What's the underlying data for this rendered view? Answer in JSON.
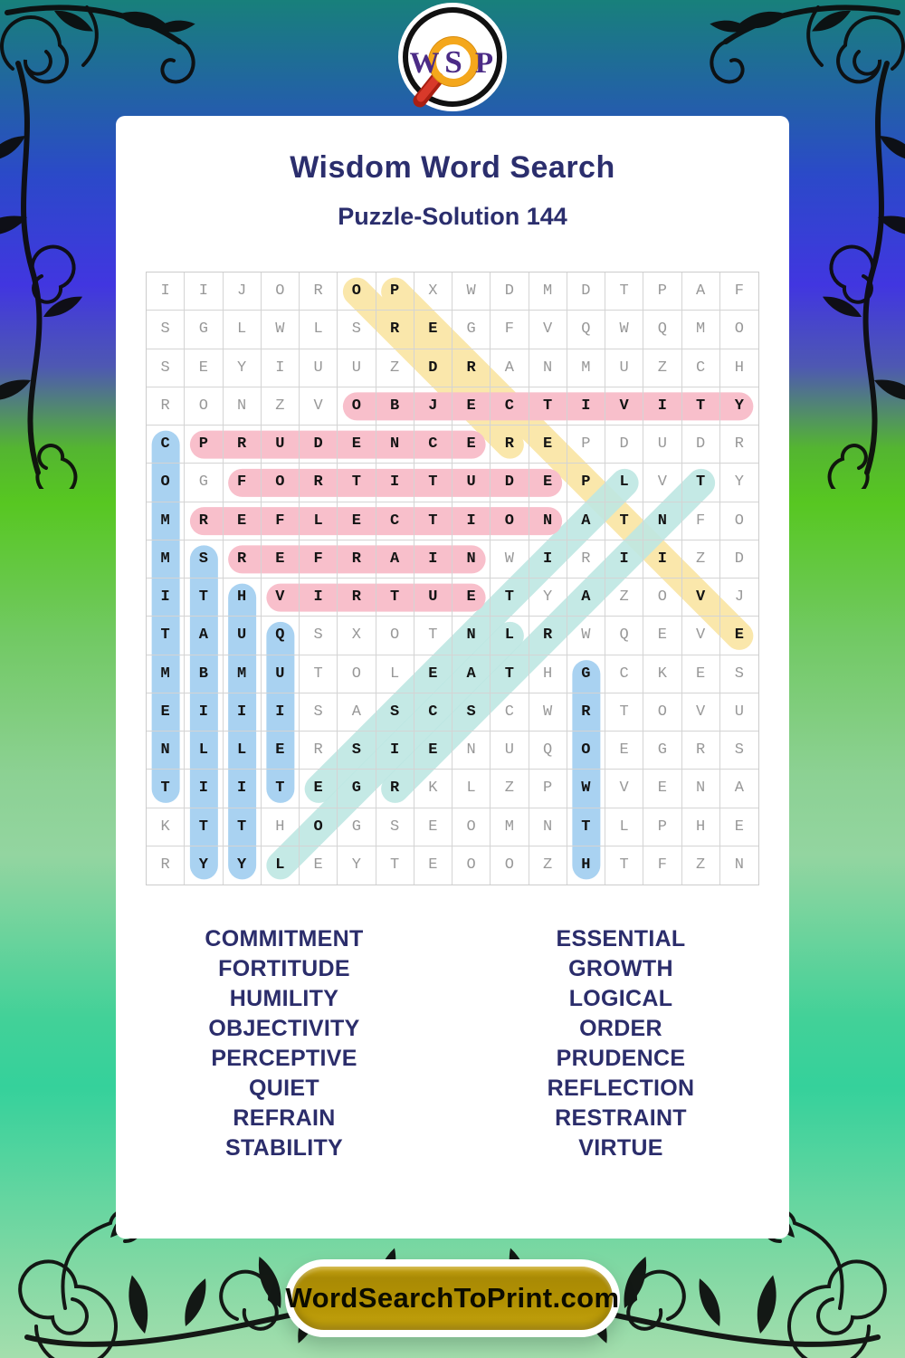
{
  "page": {
    "title": "Wisdom Word Search",
    "subtitle": "Puzzle-Solution 144"
  },
  "logo": {
    "letters": [
      "W",
      "S",
      "P"
    ],
    "icon": "magnifying-glass"
  },
  "colors": {
    "pink": "#f8bfcb",
    "blue": "#a9d2f1",
    "yellow": "#fae7ab",
    "teal": "#bee7e2",
    "title_navy": "#2b2e6d",
    "button_gold": "#b29102"
  },
  "grid": {
    "rows": [
      "IIJOROPXWDMDTPAF",
      "SGLWLSREGFVQWQMO",
      "SEYIUUZDRANMUZCH",
      "RONZVOBJECTIVITY",
      "CPRUDENCEREPDUDR",
      "OGFORTITUDEPLVTY",
      "MREFLECTIONATNFO",
      "MSREFRAINWIRIIZD",
      "ITHVIRTUETYAZOVJ",
      "TAUQSXOTNLRWQEVE",
      "MBMUTOLEATHGCKES",
      "EIIISASCSCWRTOVU",
      "NLLERSIENUQOEGRS",
      "TIITEGRKLZPWVENA",
      "KTTHOGSEOMNTLPHE",
      "RYYLEYTEOOZHTFZN"
    ],
    "words": [
      {
        "word": "ORDER",
        "color": "yellow",
        "start": [
          1,
          6
        ],
        "end": [
          5,
          10
        ]
      },
      {
        "word": "PERCEPTIVE",
        "color": "yellow",
        "start": [
          1,
          7
        ],
        "end": [
          10,
          16
        ]
      },
      {
        "word": "ESSENTIAL",
        "color": "teal",
        "start": [
          14,
          5
        ],
        "end": [
          6,
          13
        ]
      },
      {
        "word": "RESTRAINT",
        "color": "teal",
        "start": [
          14,
          7
        ],
        "end": [
          6,
          15
        ]
      },
      {
        "word": "LOGICAL",
        "color": "teal",
        "start": [
          16,
          4
        ],
        "end": [
          10,
          10
        ]
      },
      {
        "word": "OBJECTIVITY",
        "color": "pink",
        "start": [
          4,
          6
        ],
        "end": [
          4,
          16
        ]
      },
      {
        "word": "PRUDENCE",
        "color": "pink",
        "start": [
          5,
          2
        ],
        "end": [
          5,
          9
        ]
      },
      {
        "word": "FORTITUDE",
        "color": "pink",
        "start": [
          6,
          3
        ],
        "end": [
          6,
          11
        ]
      },
      {
        "word": "REFLECTION",
        "color": "pink",
        "start": [
          7,
          2
        ],
        "end": [
          7,
          11
        ]
      },
      {
        "word": "REFRAIN",
        "color": "pink",
        "start": [
          8,
          3
        ],
        "end": [
          8,
          9
        ]
      },
      {
        "word": "VIRTUE",
        "color": "pink",
        "start": [
          9,
          4
        ],
        "end": [
          9,
          9
        ]
      },
      {
        "word": "COMMITMENT",
        "color": "blue",
        "start": [
          5,
          1
        ],
        "end": [
          14,
          1
        ]
      },
      {
        "word": "STABILITY",
        "color": "blue",
        "start": [
          8,
          2
        ],
        "end": [
          16,
          2
        ]
      },
      {
        "word": "HUMILITY",
        "color": "blue",
        "start": [
          9,
          3
        ],
        "end": [
          16,
          3
        ]
      },
      {
        "word": "QUIET",
        "color": "blue",
        "start": [
          10,
          4
        ],
        "end": [
          14,
          4
        ]
      },
      {
        "word": "GROWTH",
        "color": "blue",
        "start": [
          11,
          12
        ],
        "end": [
          16,
          12
        ]
      }
    ]
  },
  "word_lists": {
    "left": [
      "COMMITMENT",
      "FORTITUDE",
      "HUMILITY",
      "OBJECTIVITY",
      "PERCEPTIVE",
      "QUIET",
      "REFRAIN",
      "STABILITY"
    ],
    "right": [
      "ESSENTIAL",
      "GROWTH",
      "LOGICAL",
      "ORDER",
      "PRUDENCE",
      "REFLECTION",
      "RESTRAINT",
      "VIRTUE"
    ]
  },
  "footer": {
    "label": "WordSearchToPrint.com"
  }
}
